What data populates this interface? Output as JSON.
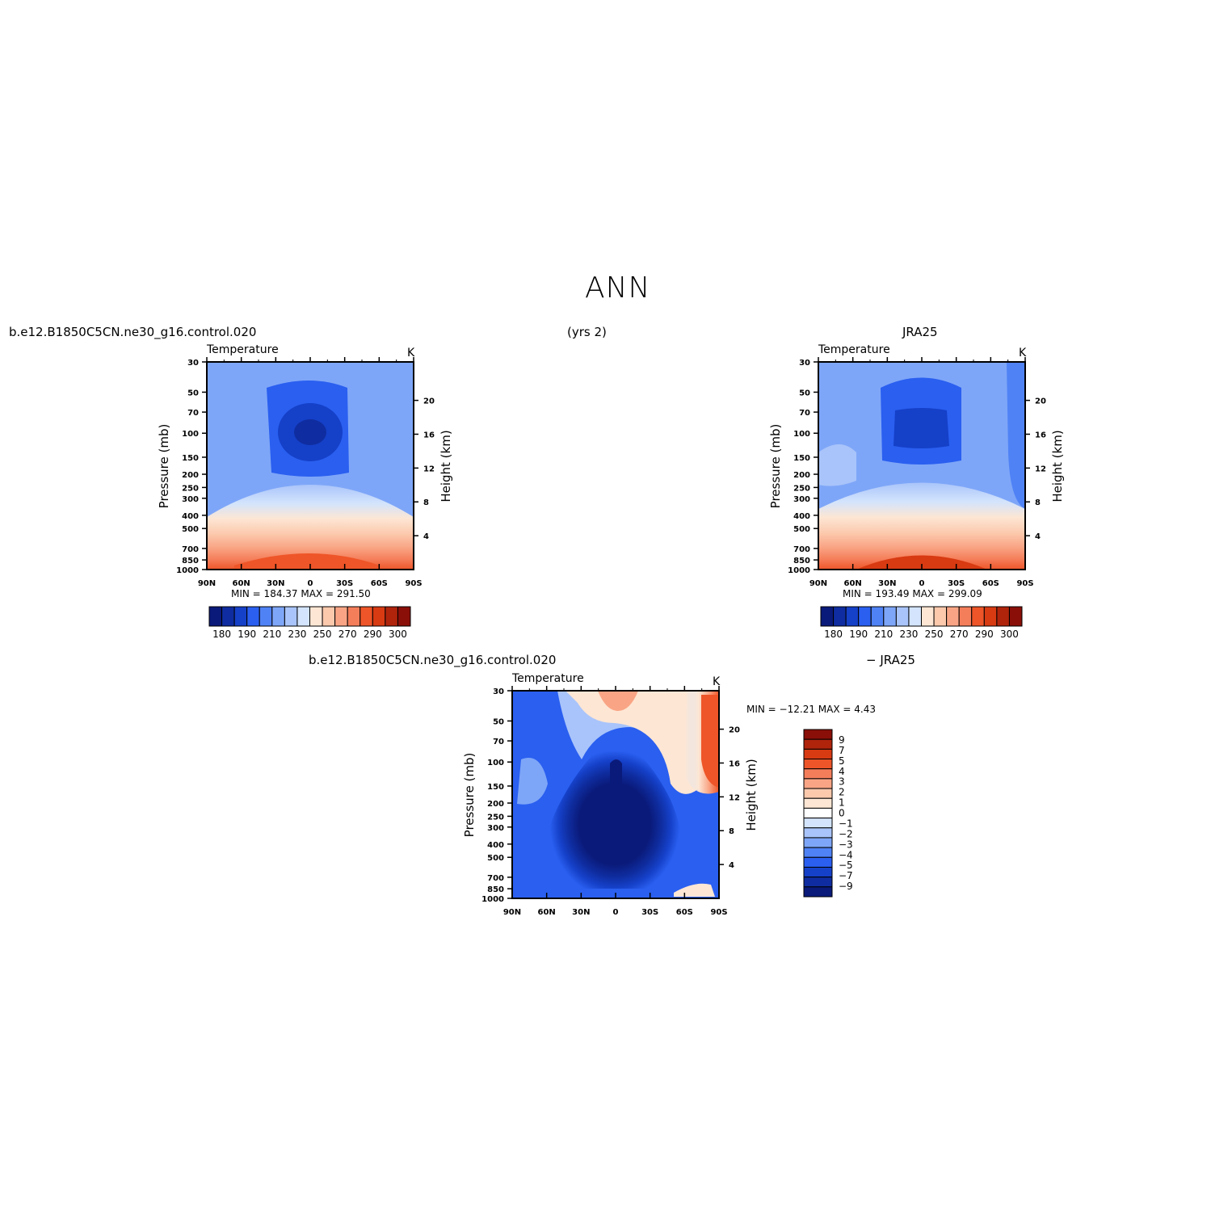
{
  "page": {
    "title": "ANN",
    "case_name": "b.e12.B1850C5CN.ne30_g16.control.020",
    "years": "(yrs 2)",
    "obs_name": "JRA25",
    "diff_case_name": "b.e12.B1850C5CN.ne30_g16.control.020",
    "diff_obs_name": "− JRA25"
  },
  "chart_data": [
    {
      "type": "heatmap",
      "id": "model",
      "variable_label": "Temperature",
      "units_label": "K",
      "ylabel": "Pressure (mb)",
      "ylabel_right": "Height (km)",
      "x_ticks": [
        "90N",
        "60N",
        "30N",
        "0",
        "30S",
        "60S",
        "90S"
      ],
      "y_ticks": [
        "30",
        "50",
        "70",
        "100",
        "150",
        "200",
        "250",
        "300",
        "400",
        "500",
        "700",
        "850",
        "1000"
      ],
      "y_ticks_right": [
        "20",
        "16",
        "12",
        "8",
        "4"
      ],
      "stats": "MIN = 184.37   MAX = 291.50",
      "min": 184.37,
      "max": 291.5,
      "colorbar": {
        "orientation": "horizontal",
        "labels": [
          "180",
          "190",
          "210",
          "230",
          "250",
          "270",
          "290",
          "300"
        ],
        "colors": [
          "#0a1a7a",
          "#0f2da0",
          "#1540c8",
          "#2a5ff0",
          "#4f82f5",
          "#7ea6f8",
          "#a9c4fa",
          "#d3e4fc",
          "#fde6d4",
          "#fcc9ad",
          "#f9a585",
          "#f57e5a",
          "#ee5528",
          "#d83a12",
          "#b0240c",
          "#8a0f08"
        ]
      },
      "field_summary": "cold core (~190 K) near 100 mb at equator; warm (~290 K) near 1000 mb"
    },
    {
      "type": "heatmap",
      "id": "obs",
      "variable_label": "Temperature",
      "units_label": "K",
      "ylabel": "Pressure (mb)",
      "ylabel_right": "Height (km)",
      "x_ticks": [
        "90N",
        "60N",
        "30N",
        "0",
        "30S",
        "60S",
        "90S"
      ],
      "y_ticks": [
        "30",
        "50",
        "70",
        "100",
        "150",
        "200",
        "250",
        "300",
        "400",
        "500",
        "700",
        "850",
        "1000"
      ],
      "y_ticks_right": [
        "20",
        "16",
        "12",
        "8",
        "4"
      ],
      "stats": "MIN = 193.49   MAX = 299.09",
      "min": 193.49,
      "max": 299.09,
      "colorbar": {
        "orientation": "horizontal",
        "labels": [
          "180",
          "190",
          "210",
          "230",
          "250",
          "270",
          "290",
          "300"
        ],
        "colors": [
          "#0a1a7a",
          "#0f2da0",
          "#1540c8",
          "#2a5ff0",
          "#4f82f5",
          "#7ea6f8",
          "#a9c4fa",
          "#d3e4fc",
          "#fde6d4",
          "#fcc9ad",
          "#f9a585",
          "#f57e5a",
          "#ee5528",
          "#d83a12",
          "#b0240c",
          "#8a0f08"
        ]
      }
    },
    {
      "type": "heatmap",
      "id": "diff",
      "variable_label": "Temperature",
      "units_label": "K",
      "ylabel": "Pressure (mb)",
      "ylabel_right": "Height (km)",
      "x_ticks": [
        "90N",
        "60N",
        "30N",
        "0",
        "30S",
        "60S",
        "90S"
      ],
      "y_ticks": [
        "30",
        "50",
        "70",
        "100",
        "150",
        "200",
        "250",
        "300",
        "400",
        "500",
        "700",
        "850",
        "1000"
      ],
      "y_ticks_right": [
        "20",
        "16",
        "12",
        "8",
        "4"
      ],
      "stats": "MIN = −12.21   MAX =    4.43",
      "min": -12.21,
      "max": 4.43,
      "colorbar": {
        "orientation": "vertical",
        "labels": [
          "9",
          "7",
          "5",
          "4",
          "3",
          "2",
          "1",
          "0",
          "−1",
          "−2",
          "−3",
          "−4",
          "−5",
          "−7",
          "−9"
        ],
        "colors": [
          "#8a0f08",
          "#b0240c",
          "#d83a12",
          "#ee5528",
          "#f57e5a",
          "#f9a585",
          "#fcc9ad",
          "#fde6d4",
          "#ffffff",
          "#d3e4fc",
          "#a9c4fa",
          "#7ea6f8",
          "#4f82f5",
          "#2a5ff0",
          "#1540c8",
          "#0f2da0",
          "#0a1a7a"
        ]
      }
    }
  ]
}
